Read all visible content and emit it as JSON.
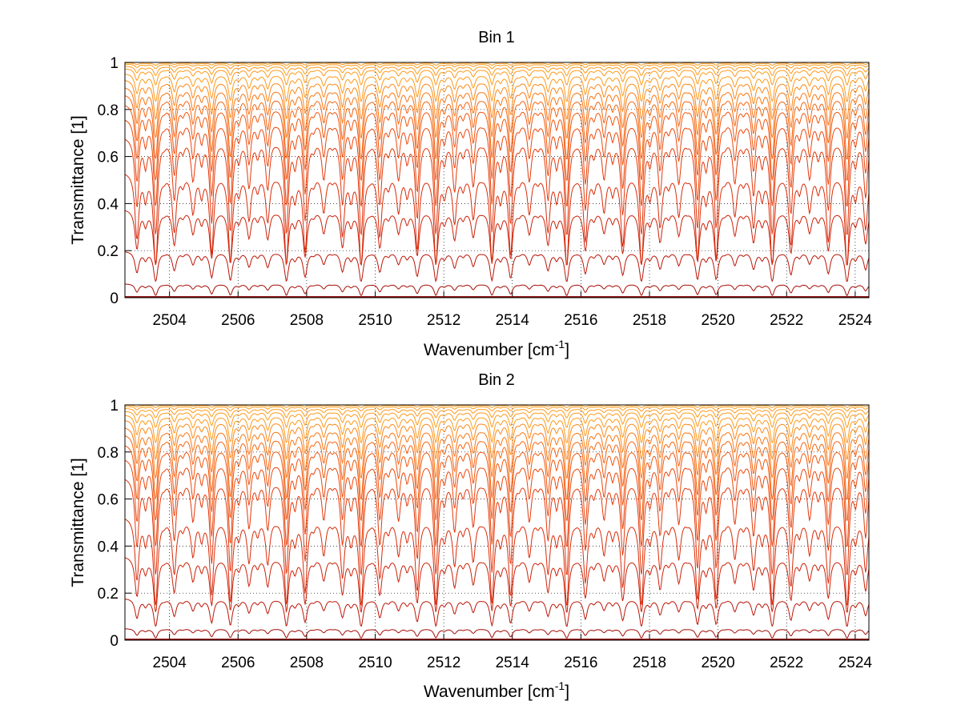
{
  "chart_data": [
    {
      "type": "line",
      "title": "Bin 1",
      "xlabel": "Wavenumber [cm",
      "xlabel_sup": "-1",
      "xlabel_end": "]",
      "ylabel": "Transmittance [1]",
      "xlim": [
        2502.7,
        2524.4
      ],
      "ylim": [
        0,
        1
      ],
      "xticks": [
        "2504",
        "2506",
        "2508",
        "2510",
        "2512",
        "2514",
        "2516",
        "2518",
        "2520",
        "2522",
        "2524"
      ],
      "yticks": [
        "0",
        "0.2",
        "0.4",
        "0.6",
        "0.8",
        "1"
      ],
      "grid": true,
      "colors": [
        "#8b0000",
        "#a50d06",
        "#bb1608",
        "#cc2109",
        "#d92c0a",
        "#e3390b",
        "#eb470c",
        "#f1560d",
        "#f6650f",
        "#f97612",
        "#fb8816",
        "#fd9a1a"
      ],
      "series": [
        {
          "baseline": 0.003,
          "depth": 0.0
        },
        {
          "baseline": 0.06,
          "depth": 0.05
        },
        {
          "baseline": 0.2,
          "depth": 0.13
        },
        {
          "baseline": 0.38,
          "depth": 0.24
        },
        {
          "baseline": 0.54,
          "depth": 0.4
        },
        {
          "baseline": 0.69,
          "depth": 0.42
        },
        {
          "baseline": 0.77,
          "depth": 0.38
        },
        {
          "baseline": 0.83,
          "depth": 0.33
        },
        {
          "baseline": 0.87,
          "depth": 0.28
        },
        {
          "baseline": 0.9,
          "depth": 0.22
        },
        {
          "baseline": 0.93,
          "depth": 0.17
        },
        {
          "baseline": 0.955,
          "depth": 0.12
        },
        {
          "baseline": 0.975,
          "depth": 0.07
        },
        {
          "baseline": 0.985,
          "depth": 0.04
        },
        {
          "baseline": 0.993,
          "depth": 0.02
        },
        {
          "baseline": 0.998,
          "depth": 0.01
        }
      ]
    },
    {
      "type": "line",
      "title": "Bin 2",
      "xlabel": "Wavenumber [cm",
      "xlabel_sup": "-1",
      "xlabel_end": "]",
      "ylabel": "Transmittance [1]",
      "xlim": [
        2502.7,
        2524.4
      ],
      "ylim": [
        0,
        1
      ],
      "xticks": [
        "2504",
        "2506",
        "2508",
        "2510",
        "2512",
        "2514",
        "2516",
        "2518",
        "2520",
        "2522",
        "2524"
      ],
      "yticks": [
        "0",
        "0.2",
        "0.4",
        "0.6",
        "0.8",
        "1"
      ],
      "grid": true,
      "colors": [
        "#8b0000",
        "#a50d06",
        "#bb1608",
        "#cc2109",
        "#d92c0a",
        "#e3390b",
        "#eb470c",
        "#f1560d",
        "#f6650f",
        "#f97612",
        "#fb8816",
        "#fd9a1a"
      ],
      "series": [
        {
          "baseline": 0.003,
          "depth": 0.0
        },
        {
          "baseline": 0.05,
          "depth": 0.04
        },
        {
          "baseline": 0.18,
          "depth": 0.12
        },
        {
          "baseline": 0.36,
          "depth": 0.24
        },
        {
          "baseline": 0.53,
          "depth": 0.38
        },
        {
          "baseline": 0.7,
          "depth": 0.42
        },
        {
          "baseline": 0.78,
          "depth": 0.38
        },
        {
          "baseline": 0.84,
          "depth": 0.33
        },
        {
          "baseline": 0.88,
          "depth": 0.28
        },
        {
          "baseline": 0.91,
          "depth": 0.22
        },
        {
          "baseline": 0.94,
          "depth": 0.17
        },
        {
          "baseline": 0.96,
          "depth": 0.12
        },
        {
          "baseline": 0.975,
          "depth": 0.07
        },
        {
          "baseline": 0.986,
          "depth": 0.04
        },
        {
          "baseline": 0.994,
          "depth": 0.02
        },
        {
          "baseline": 0.999,
          "depth": 0.01
        }
      ]
    }
  ]
}
